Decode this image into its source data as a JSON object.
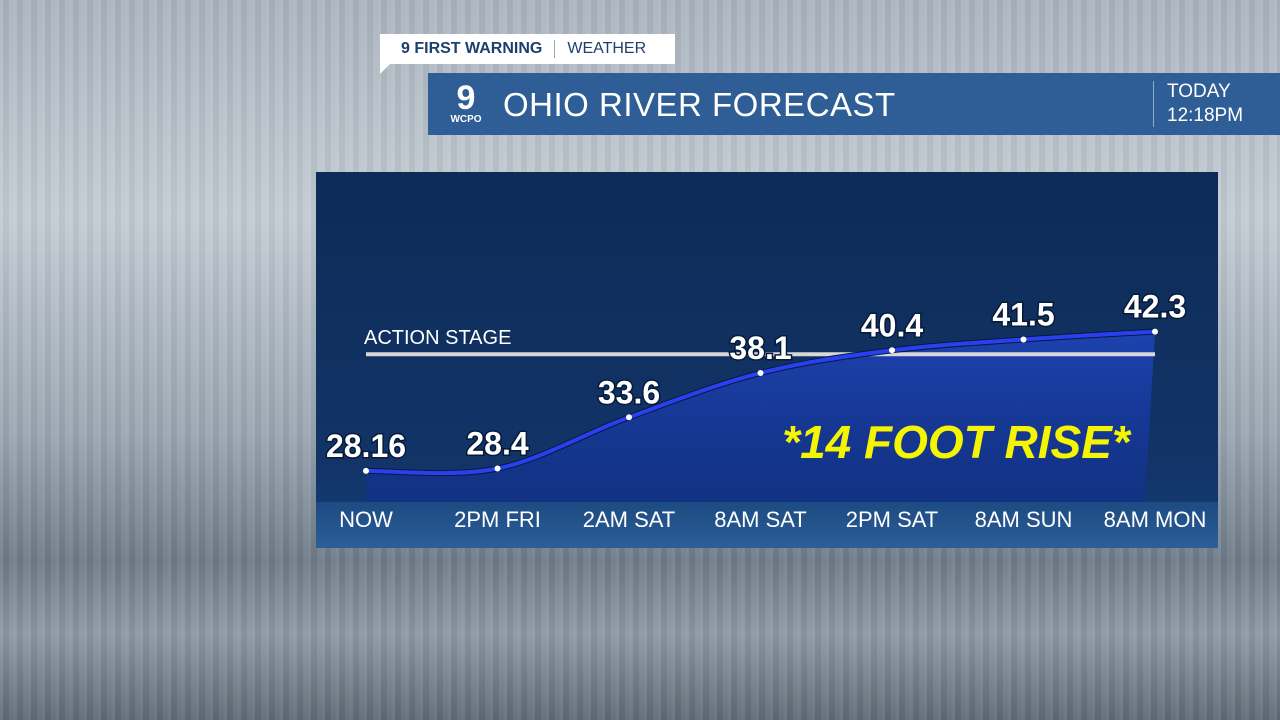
{
  "header": {
    "tag_bold": "9 FIRST WARNING",
    "tag_light": "WEATHER",
    "logo_number": "9",
    "logo_text": "WCPO",
    "title": "OHIO RIVER FORECAST",
    "day": "TODAY",
    "time": "12:18PM"
  },
  "chart_data": {
    "type": "line",
    "categories": [
      "NOW",
      "2PM FRI",
      "2AM SAT",
      "8AM SAT",
      "2PM SAT",
      "8AM SUN",
      "8AM MON"
    ],
    "values": [
      28.16,
      28.4,
      33.6,
      38.1,
      40.4,
      41.5,
      42.3
    ],
    "value_labels": [
      "28.16",
      "28.4",
      "33.6",
      "38.1",
      "40.4",
      "41.5",
      "42.3"
    ],
    "reference_line": {
      "label": "ACTION STAGE",
      "value": 40
    },
    "annotation": "*14 FOOT RISE*",
    "ylim": [
      25,
      58.5
    ],
    "grid": false,
    "colors": {
      "line": "#2a3ff0",
      "annotation": "#f5f500",
      "reference": "#d8d8d8",
      "fill": "#1a3aa8"
    }
  }
}
